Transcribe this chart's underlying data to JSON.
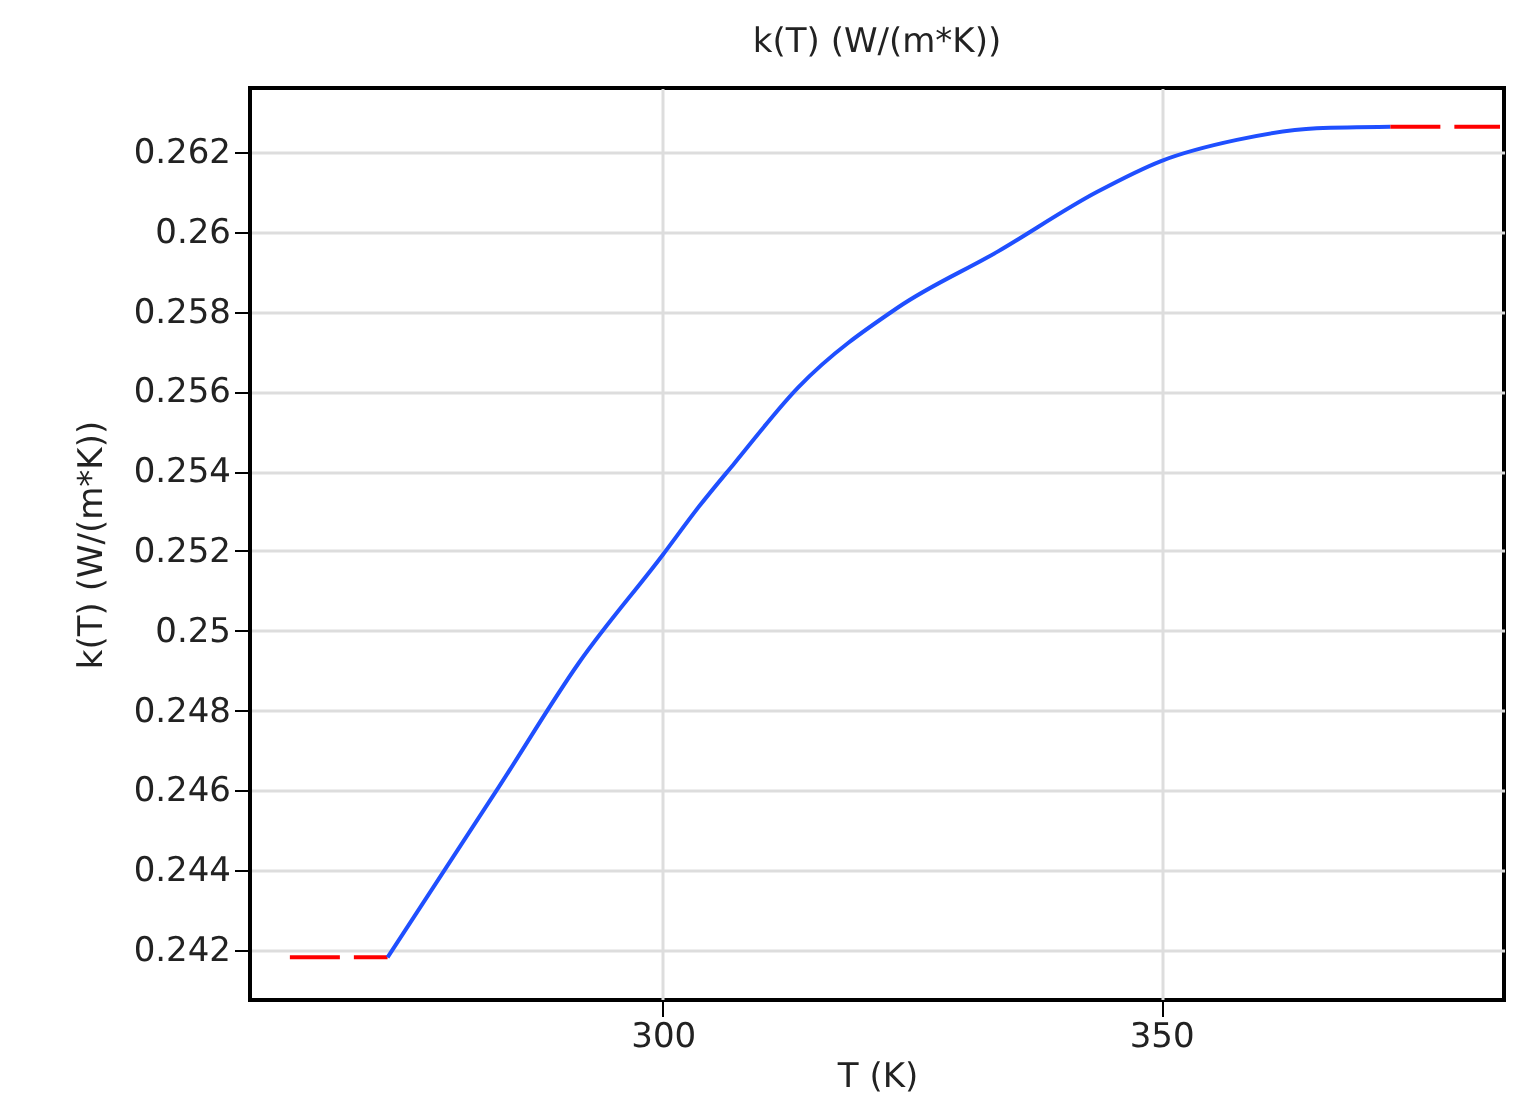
{
  "chart_data": {
    "type": "line",
    "title": "k(T) (W/(m*K))",
    "xlabel": "T (K)",
    "ylabel": "k(T) (W/(m*K))",
    "series": [
      {
        "color": "#ff0000",
        "line_style": "dashed",
        "x": [
          262.6,
          272.4
        ],
        "values": [
          0.24182,
          0.24182
        ]
      },
      {
        "color": "#1f4fff",
        "line_style": "solid",
        "x": [
          272.4,
          283.6,
          291.6,
          300,
          303.6,
          307.2,
          313.6,
          323.6,
          333.6,
          343.6,
          350,
          357.6,
          365.6,
          373
        ],
        "values": [
          0.24182,
          0.2461,
          0.2492,
          0.2519,
          0.2531,
          0.2542,
          0.2561,
          0.2581,
          0.2595,
          0.261,
          0.26177,
          0.2623,
          0.26259,
          0.26263
        ]
      },
      {
        "color": "#ff0000",
        "line_style": "dashed",
        "x": [
          373,
          384
        ],
        "values": [
          0.26263,
          0.26263
        ]
      }
    ],
    "xlim": [
      258.6,
      384.4
    ],
    "ylim": [
      0.24075,
      0.2636
    ],
    "xticks": [
      300,
      350
    ],
    "yticks": [
      0.242,
      0.244,
      0.246,
      0.248,
      0.25,
      0.252,
      0.254,
      0.256,
      0.258,
      0.26,
      0.262
    ],
    "grid": true,
    "marker": "none"
  }
}
